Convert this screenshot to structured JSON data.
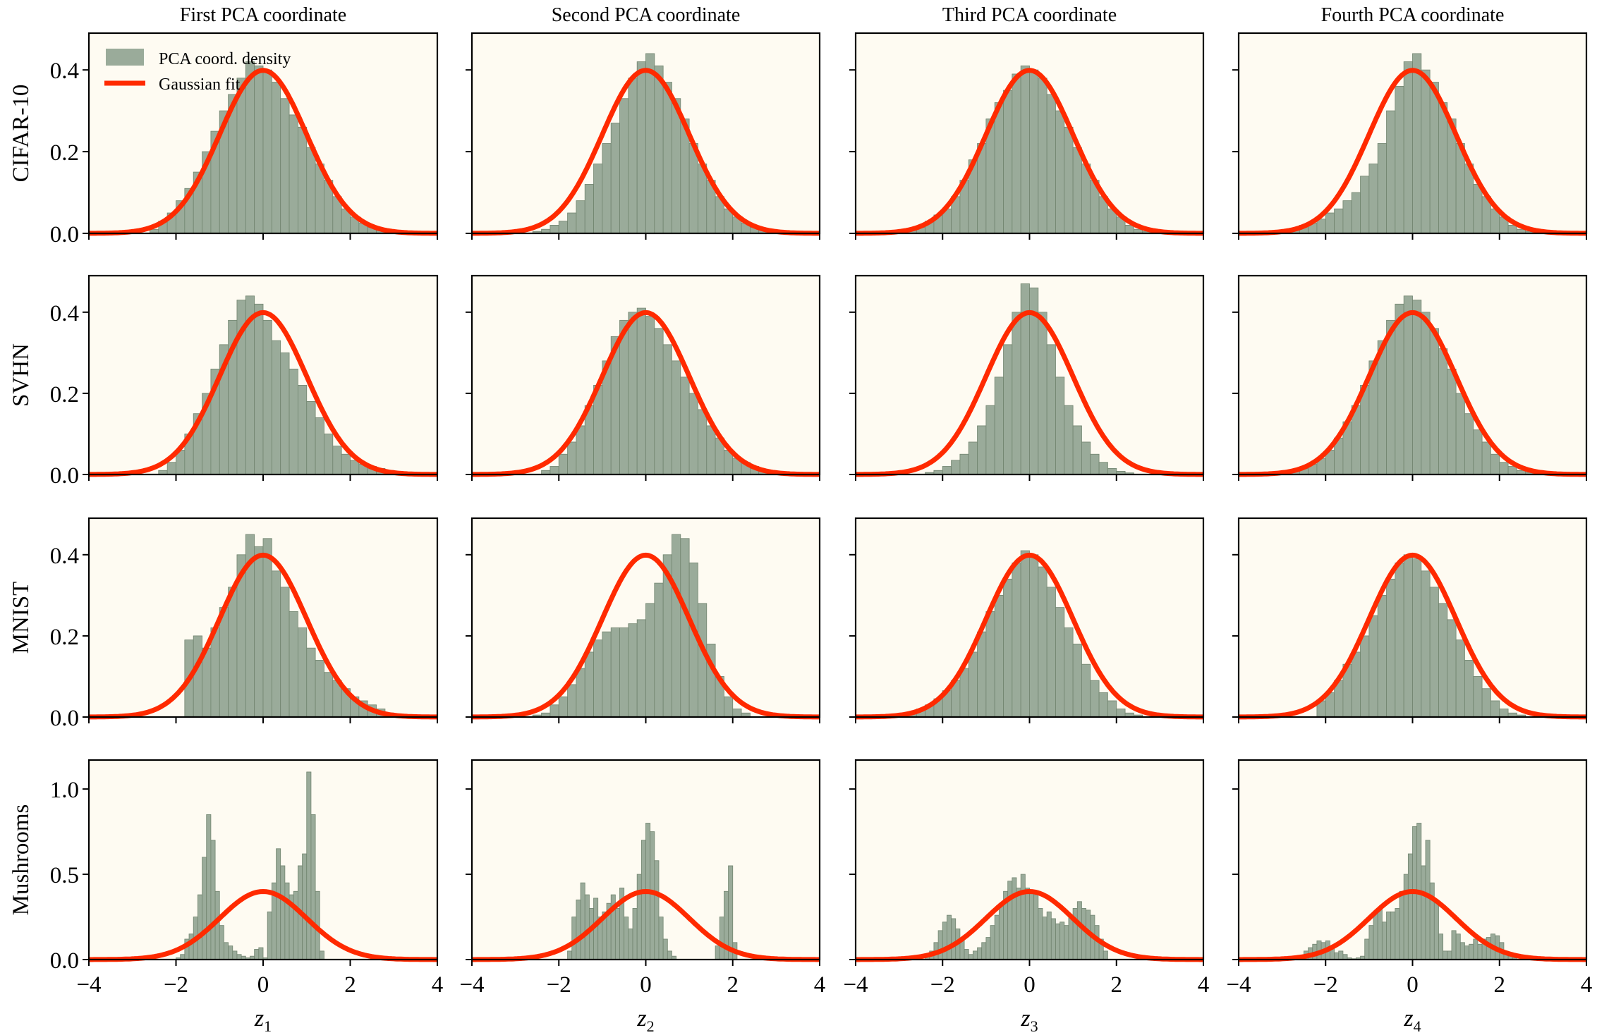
{
  "chart_data": {
    "type": "histogram-grid",
    "column_titles": [
      "First PCA coordinate",
      "Second PCA coordinate",
      "Third PCA coordinate",
      "Fourth PCA coordinate"
    ],
    "row_labels": [
      "CIFAR-10",
      "SVHN",
      "MNIST",
      "Mushrooms"
    ],
    "xlabels": [
      {
        "base": "z",
        "sub": "1"
      },
      {
        "base": "z",
        "sub": "2"
      },
      {
        "base": "z",
        "sub": "3"
      },
      {
        "base": "z",
        "sub": "4"
      }
    ],
    "xlim": [
      -4,
      4
    ],
    "xticks": [
      -4,
      -2,
      0,
      2,
      4
    ],
    "xtick_labels": [
      "−4",
      "−2",
      "0",
      "2",
      "4"
    ],
    "row_ylim": [
      [
        0,
        0.49
      ],
      [
        0,
        0.49
      ],
      [
        0,
        0.49
      ],
      [
        0,
        1.17
      ]
    ],
    "row_yticks": [
      [
        0,
        0.2,
        0.4
      ],
      [
        0,
        0.2,
        0.4
      ],
      [
        0,
        0.2,
        0.4
      ],
      [
        0,
        0.5,
        1.0
      ]
    ],
    "row_ytick_labels": [
      [
        "0.0",
        "0.2",
        "0.4"
      ],
      [
        "0.0",
        "0.2",
        "0.4"
      ],
      [
        "0.0",
        "0.2",
        "0.4"
      ],
      [
        "0.0",
        "0.5",
        "1.0"
      ]
    ],
    "legend": {
      "placement": "upper-left",
      "entries": [
        "PCA coord. density",
        "Gaussian fit"
      ]
    },
    "gaussian_fit": {
      "mean": 0,
      "std": 1
    },
    "colors": {
      "histogram": "#9aab9a",
      "fit": "#ff2a00",
      "background": "#fefbf2"
    },
    "panels": [
      [
        {
          "bin_start": -2.6,
          "bin_width": 0.2,
          "density": [
            0.01,
            0.03,
            0.05,
            0.08,
            0.11,
            0.15,
            0.2,
            0.25,
            0.3,
            0.34,
            0.38,
            0.42,
            0.41,
            0.4,
            0.37,
            0.33,
            0.29,
            0.26,
            0.21,
            0.17,
            0.13,
            0.09,
            0.06,
            0.04,
            0.025,
            0.015,
            0.01,
            0.005
          ]
        },
        {
          "bin_start": -2.6,
          "bin_width": 0.2,
          "density": [
            0.005,
            0.01,
            0.02,
            0.03,
            0.05,
            0.08,
            0.12,
            0.17,
            0.22,
            0.27,
            0.33,
            0.38,
            0.42,
            0.44,
            0.41,
            0.37,
            0.33,
            0.28,
            0.22,
            0.17,
            0.13,
            0.09,
            0.06,
            0.04,
            0.025,
            0.015,
            0.01,
            0.005
          ]
        },
        {
          "bin_start": -2.8,
          "bin_width": 0.2,
          "density": [
            0.008,
            0.015,
            0.03,
            0.045,
            0.06,
            0.09,
            0.13,
            0.18,
            0.22,
            0.28,
            0.32,
            0.35,
            0.39,
            0.41,
            0.4,
            0.38,
            0.34,
            0.3,
            0.26,
            0.21,
            0.17,
            0.13,
            0.09,
            0.06,
            0.04,
            0.02,
            0.01,
            0.005
          ]
        },
        {
          "bin_start": -3.0,
          "bin_width": 0.2,
          "density": [
            0.003,
            0.01,
            0.02,
            0.025,
            0.035,
            0.05,
            0.06,
            0.08,
            0.1,
            0.14,
            0.17,
            0.22,
            0.3,
            0.36,
            0.42,
            0.44,
            0.4,
            0.37,
            0.32,
            0.28,
            0.22,
            0.17,
            0.12,
            0.09,
            0.06,
            0.04,
            0.02,
            0.01,
            0.005,
            0.002
          ]
        }
      ],
      [
        {
          "bin_start": -2.4,
          "bin_width": 0.2,
          "density": [
            0.01,
            0.03,
            0.06,
            0.1,
            0.15,
            0.2,
            0.26,
            0.32,
            0.38,
            0.43,
            0.44,
            0.42,
            0.38,
            0.33,
            0.3,
            0.26,
            0.22,
            0.18,
            0.14,
            0.1,
            0.07,
            0.05,
            0.035,
            0.025,
            0.02,
            0.015,
            0.01,
            0.008,
            0.005,
            0.003
          ]
        },
        {
          "bin_start": -2.4,
          "bin_width": 0.2,
          "density": [
            0.01,
            0.02,
            0.05,
            0.08,
            0.12,
            0.17,
            0.22,
            0.28,
            0.34,
            0.38,
            0.4,
            0.41,
            0.39,
            0.36,
            0.32,
            0.28,
            0.24,
            0.2,
            0.16,
            0.12,
            0.09,
            0.06,
            0.04,
            0.03,
            0.02,
            0.012,
            0.008,
            0.005
          ]
        },
        {
          "bin_start": -2.4,
          "bin_width": 0.2,
          "density": [
            0.005,
            0.01,
            0.02,
            0.035,
            0.05,
            0.08,
            0.12,
            0.17,
            0.24,
            0.32,
            0.4,
            0.47,
            0.46,
            0.4,
            0.32,
            0.24,
            0.17,
            0.12,
            0.08,
            0.05,
            0.03,
            0.015,
            0.008,
            0.004
          ]
        },
        {
          "bin_start": -2.8,
          "bin_width": 0.2,
          "density": [
            0.008,
            0.015,
            0.025,
            0.04,
            0.06,
            0.09,
            0.13,
            0.17,
            0.22,
            0.28,
            0.33,
            0.38,
            0.42,
            0.44,
            0.43,
            0.4,
            0.36,
            0.31,
            0.26,
            0.2,
            0.15,
            0.11,
            0.08,
            0.05,
            0.03,
            0.02,
            0.01,
            0.005
          ]
        }
      ],
      [
        {
          "bin_start": -1.8,
          "bin_width": 0.2,
          "density": [
            0.19,
            0.2,
            0.17,
            0.22,
            0.27,
            0.32,
            0.4,
            0.45,
            0.42,
            0.44,
            0.36,
            0.32,
            0.26,
            0.22,
            0.17,
            0.14,
            0.11,
            0.09,
            0.07,
            0.05,
            0.04,
            0.03,
            0.02,
            0.01,
            0.005
          ]
        },
        {
          "bin_start": -2.6,
          "bin_width": 0.2,
          "density": [
            0.005,
            0.01,
            0.03,
            0.05,
            0.08,
            0.12,
            0.16,
            0.19,
            0.21,
            0.22,
            0.22,
            0.23,
            0.24,
            0.28,
            0.33,
            0.4,
            0.45,
            0.44,
            0.38,
            0.28,
            0.18,
            0.1,
            0.05,
            0.02,
            0.01
          ]
        },
        {
          "bin_start": -2.8,
          "bin_width": 0.2,
          "density": [
            0.01,
            0.02,
            0.03,
            0.045,
            0.065,
            0.09,
            0.12,
            0.16,
            0.21,
            0.26,
            0.3,
            0.34,
            0.38,
            0.41,
            0.4,
            0.37,
            0.32,
            0.27,
            0.22,
            0.18,
            0.13,
            0.09,
            0.06,
            0.04,
            0.02,
            0.01,
            0.005
          ]
        },
        {
          "bin_start": -2.2,
          "bin_width": 0.2,
          "density": [
            0.04,
            0.06,
            0.09,
            0.13,
            0.16,
            0.2,
            0.25,
            0.3,
            0.34,
            0.38,
            0.4,
            0.39,
            0.36,
            0.32,
            0.28,
            0.24,
            0.19,
            0.14,
            0.1,
            0.07,
            0.04,
            0.02,
            0.01,
            0.005
          ]
        }
      ],
      [
        {
          "bin_start": -2.0,
          "bin_width": 0.1,
          "density": [
            0.01,
            0.03,
            0.12,
            0.15,
            0.25,
            0.38,
            0.6,
            0.85,
            0.7,
            0.4,
            0.2,
            0.1,
            0.08,
            0.05,
            0.03,
            0.02,
            0.01,
            0.02,
            0.06,
            0.07,
            0.01,
            0.28,
            0.45,
            0.65,
            0.55,
            0.45,
            0.38,
            0.4,
            0.55,
            0.62,
            1.1,
            0.85,
            0.4,
            0.05
          ]
        },
        {
          "bin_start": -1.8,
          "bin_width": 0.1,
          "density": [
            0.05,
            0.25,
            0.35,
            0.45,
            0.38,
            0.3,
            0.36,
            0.25,
            0.28,
            0.33,
            0.38,
            0.3,
            0.42,
            0.25,
            0.18,
            0.3,
            0.5,
            0.7,
            0.8,
            0.75,
            0.58,
            0.25,
            0.12,
            0.05,
            0.02,
            0,
            0,
            0,
            0,
            0,
            0,
            0,
            0,
            0,
            0.08,
            0.25,
            0.4,
            0.55,
            0.1
          ]
        },
        {
          "bin_start": -2.4,
          "bin_width": 0.1,
          "density": [
            0.02,
            0.05,
            0.1,
            0.17,
            0.22,
            0.26,
            0.24,
            0.18,
            0.12,
            0.06,
            0.03,
            0.05,
            0.07,
            0.1,
            0.13,
            0.2,
            0.26,
            0.32,
            0.4,
            0.46,
            0.48,
            0.42,
            0.5,
            0.42,
            0.39,
            0.38,
            0.3,
            0.25,
            0.28,
            0.24,
            0.21,
            0.22,
            0.2,
            0.26,
            0.3,
            0.34,
            0.3,
            0.29,
            0.26,
            0.2,
            0.12,
            0.05
          ]
        },
        {
          "bin_start": -2.6,
          "bin_width": 0.1,
          "density": [
            0.02,
            0.05,
            0.07,
            0.09,
            0.11,
            0.1,
            0.11,
            0.08,
            0.04,
            0.05,
            0.03,
            0.01,
            0.005,
            0.01,
            0.02,
            0.12,
            0.2,
            0.28,
            0.3,
            0.22,
            0.28,
            0.28,
            0.3,
            0.4,
            0.5,
            0.62,
            0.78,
            0.8,
            0.55,
            0.7,
            0.45,
            0.35,
            0.15,
            0.05,
            0.05,
            0.17,
            0.15,
            0.1,
            0.08,
            0.09,
            0.12,
            0.09,
            0.12,
            0.13,
            0.15,
            0.14,
            0.1,
            0.05,
            0.02,
            0.01
          ]
        }
      ]
    ]
  }
}
